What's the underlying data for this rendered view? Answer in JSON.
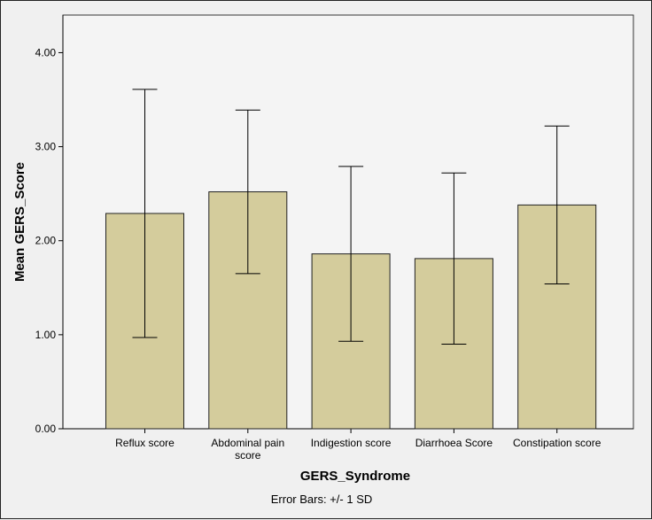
{
  "chart_data": {
    "type": "bar",
    "categories": [
      [
        "Reflux score"
      ],
      [
        "Abdominal pain",
        "score"
      ],
      [
        "Indigestion score"
      ],
      [
        "Diarrhoea Score"
      ],
      [
        "Constipation score"
      ]
    ],
    "values": [
      2.29,
      2.52,
      1.86,
      1.81,
      2.38
    ],
    "error_bars": {
      "upper": [
        3.61,
        3.39,
        2.79,
        2.72,
        3.22
      ],
      "lower": [
        0.97,
        1.65,
        0.93,
        0.9,
        1.54
      ]
    },
    "xlabel": "GERS_Syndrome",
    "ylabel": "Mean GERS_Score",
    "ylim": [
      0,
      4.4
    ],
    "yticks": [
      "0.00",
      "1.00",
      "2.00",
      "3.00",
      "4.00"
    ],
    "footnote": "Error Bars: +/- 1 SD",
    "grid": false,
    "bar_color": "#d4cc9c",
    "plot_background": "#f4f4f4"
  }
}
